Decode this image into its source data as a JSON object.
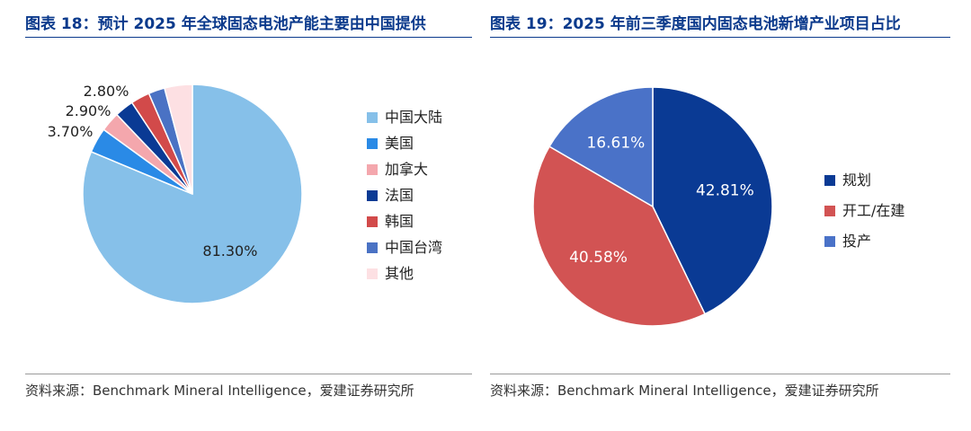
{
  "left": {
    "title": "图表 18：预计 2025 年全球固态电池产能主要由中国提供",
    "source": "资料来源：Benchmark Mineral Intelligence，爱建证券研究所"
  },
  "right": {
    "title": "图表 19：2025 年前三季度国内固态电池新增产业项目占比",
    "source": "资料来源：Benchmark Mineral Intelligence，爱建证券研究所"
  },
  "chart_data": [
    {
      "type": "pie",
      "title": "预计 2025 年全球固态电池产能主要由中国提供",
      "legend_position": "right",
      "categories": [
        "中国大陆",
        "美国",
        "加拿大",
        "法国",
        "韩国",
        "中国台湾",
        "其他"
      ],
      "values": [
        81.3,
        3.7,
        2.9,
        2.8,
        2.8,
        2.4,
        4.1
      ],
      "value_labels": [
        "81.30%",
        "3.70%",
        "2.90%",
        "2.80%",
        null,
        null,
        null
      ],
      "colors": [
        "#86c0e9",
        "#2a8ae6",
        "#f4a7ad",
        "#0a3a94",
        "#d24a4a",
        "#4a72c4",
        "#fde0e3"
      ]
    },
    {
      "type": "pie",
      "title": "2025 年前三季度国内固态电池新增产业项目占比",
      "legend_position": "right",
      "categories": [
        "规划",
        "开工/在建",
        "投产"
      ],
      "values": [
        42.81,
        40.58,
        16.61
      ],
      "value_labels": [
        "42.81%",
        "40.58%",
        "16.61%"
      ],
      "colors": [
        "#0a3a94",
        "#d25353",
        "#4a72c8"
      ]
    }
  ]
}
